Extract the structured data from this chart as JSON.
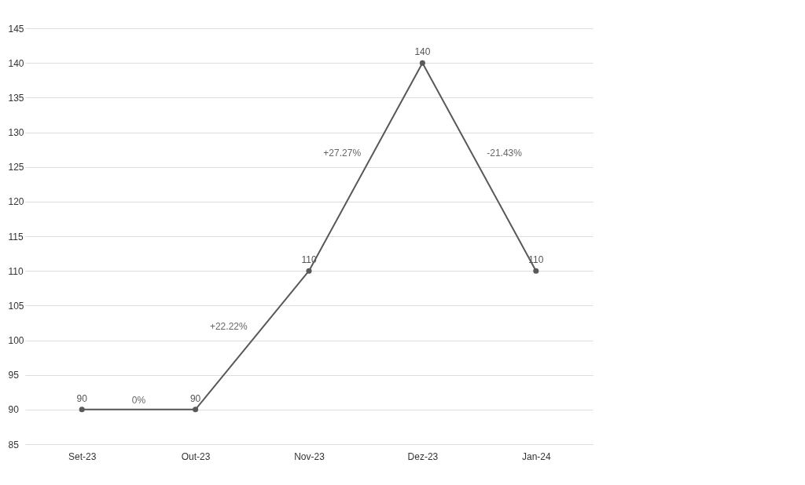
{
  "chart_data": {
    "type": "line",
    "categories": [
      "Set-23",
      "Out-23",
      "Nov-23",
      "Dez-23",
      "Jan-24"
    ],
    "series": [
      {
        "color": "#595959",
        "values": [
          90,
          90,
          110,
          140,
          110
        ]
      }
    ],
    "ylim": [
      85,
      145
    ],
    "yticks": [
      85,
      90,
      95,
      100,
      105,
      110,
      115,
      120,
      125,
      130,
      135,
      140,
      145
    ],
    "grid": "y",
    "marker": "circle",
    "line_style": "solid",
    "data_labels": true,
    "annotations": [
      "0%",
      "+22.22%",
      "+27.27%",
      "-21.43%"
    ]
  }
}
